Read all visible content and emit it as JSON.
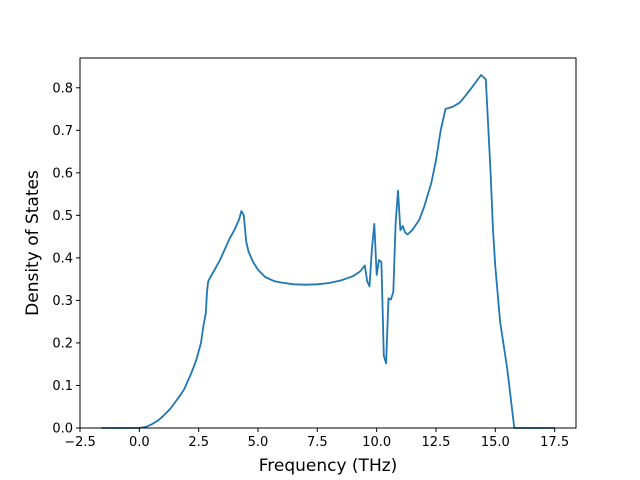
{
  "chart_data": {
    "type": "line",
    "title": "",
    "xlabel": "Frequency (THz)",
    "ylabel": "Density of States",
    "xlim": [
      -2.5,
      18.4
    ],
    "ylim": [
      0.0,
      0.87
    ],
    "xticks": [
      -2.5,
      0.0,
      2.5,
      5.0,
      7.5,
      10.0,
      12.5,
      15.0,
      17.5
    ],
    "xtick_labels": [
      "−2.5",
      "0.0",
      "2.5",
      "5.0",
      "7.5",
      "10.0",
      "12.5",
      "15.0",
      "17.5"
    ],
    "yticks": [
      0.0,
      0.1,
      0.2,
      0.3,
      0.4,
      0.5,
      0.6,
      0.7,
      0.8
    ],
    "ytick_labels": [
      "0.0",
      "0.1",
      "0.2",
      "0.3",
      "0.4",
      "0.5",
      "0.6",
      "0.7",
      "0.8"
    ],
    "grid": false,
    "line_color": "#1f77b4",
    "series": [
      {
        "x": [
          -1.6,
          -1.0,
          -0.5,
          0.0,
          0.3,
          0.5,
          0.8,
          1.0,
          1.3,
          1.5,
          1.7,
          1.9,
          2.0,
          2.2,
          2.4,
          2.6,
          2.7,
          2.8,
          2.85,
          2.9,
          3.0,
          3.2,
          3.4,
          3.6,
          3.8,
          4.0,
          4.2,
          4.3,
          4.4,
          4.5,
          4.6,
          4.8,
          5.0,
          5.3,
          5.7,
          6.0,
          6.5,
          7.0,
          7.5,
          8.0,
          8.5,
          9.0,
          9.3,
          9.5,
          9.6,
          9.7,
          9.8,
          9.9,
          10.0,
          10.1,
          10.2,
          10.3,
          10.4,
          10.5,
          10.6,
          10.7,
          10.8,
          10.9,
          11.0,
          11.1,
          11.2,
          11.3,
          11.5,
          11.8,
          12.0,
          12.3,
          12.5,
          12.7,
          12.9,
          13.0,
          13.2,
          13.5,
          13.8,
          14.0,
          14.2,
          14.4,
          14.6,
          14.8,
          14.9,
          15.0,
          15.2,
          15.5,
          15.8,
          16.0,
          16.5,
          17.5
        ],
        "y": [
          0.0,
          0.0,
          0.0,
          0.0,
          0.003,
          0.008,
          0.018,
          0.028,
          0.045,
          0.06,
          0.075,
          0.092,
          0.105,
          0.13,
          0.16,
          0.2,
          0.24,
          0.27,
          0.32,
          0.345,
          0.355,
          0.375,
          0.395,
          0.42,
          0.445,
          0.465,
          0.49,
          0.51,
          0.5,
          0.44,
          0.415,
          0.39,
          0.372,
          0.355,
          0.345,
          0.342,
          0.338,
          0.337,
          0.338,
          0.341,
          0.347,
          0.357,
          0.368,
          0.382,
          0.345,
          0.333,
          0.42,
          0.48,
          0.36,
          0.395,
          0.39,
          0.17,
          0.152,
          0.305,
          0.302,
          0.32,
          0.48,
          0.558,
          0.465,
          0.475,
          0.46,
          0.455,
          0.465,
          0.49,
          0.52,
          0.575,
          0.63,
          0.7,
          0.75,
          0.752,
          0.755,
          0.765,
          0.785,
          0.8,
          0.815,
          0.83,
          0.82,
          0.6,
          0.47,
          0.38,
          0.25,
          0.14,
          0.0,
          0.0,
          0.0,
          0.0
        ]
      }
    ]
  }
}
